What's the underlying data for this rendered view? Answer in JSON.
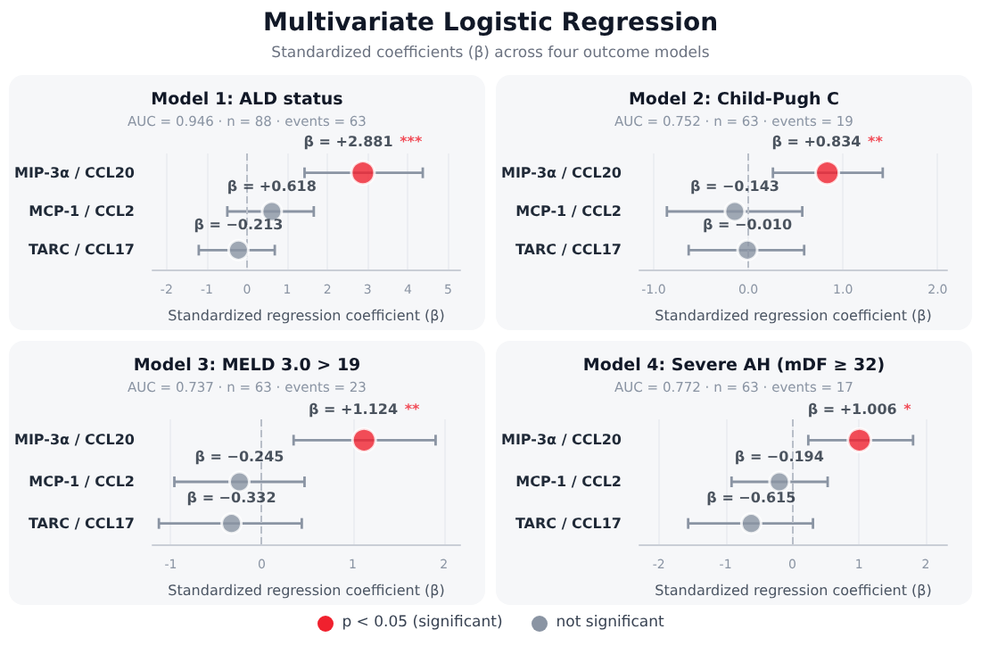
{
  "chart_data": [
    {
      "type": "scatter",
      "orientation": "horizontal",
      "title": "Model 1: ALD status",
      "subtitle": "AUC = 0.946 · n = 88 · events = 63",
      "xlabel": "Standardized regression coefficient (β)",
      "annotations": [
        "Multivariate Logistic Regression",
        "Standardized coefficients (β) across four outcome models"
      ],
      "categories": [
        "MIP-3α / CCL20",
        "MCP-1 / CCL2",
        "TARC / CCL17"
      ],
      "xlim": [
        -2.35,
        5.3
      ],
      "xticks": [
        -2,
        -1,
        0,
        1,
        2,
        3,
        4,
        5
      ],
      "grid": "x",
      "marker": "circle",
      "legend": "bottom",
      "ref_lines": [
        {
          "axis": "x",
          "value": 0,
          "line_style": "dashed",
          "color": "#b8bec8"
        }
      ],
      "series": [
        {
          "name": "p < 0.05 (significant)",
          "color": "#f0212e",
          "values": [
            2.881,
            null,
            null
          ],
          "errors": [
            [
              1.43,
              4.37
            ],
            null,
            null
          ],
          "value_labels": [
            "β = +2.881 ***",
            null,
            null
          ]
        },
        {
          "name": "not significant",
          "color": "#8a94a3",
          "values": [
            null,
            0.618,
            -0.213
          ],
          "errors": [
            null,
            [
              -0.49,
              1.66
            ],
            [
              -1.2,
              0.69
            ]
          ],
          "value_labels": [
            null,
            "β = +0.618",
            "β = −0.213"
          ]
        }
      ]
    },
    {
      "type": "scatter",
      "orientation": "horizontal",
      "title": "Model 2: Child-Pugh C",
      "subtitle": "AUC = 0.752 · n = 63 · events = 19",
      "xlabel": "Standardized regression coefficient (β)",
      "categories": [
        "MIP-3α / CCL20",
        "MCP-1 / CCL2",
        "TARC / CCL17"
      ],
      "xlim": [
        -1.15,
        2.1
      ],
      "xticks": [
        {
          "value": -1,
          "label": "-1.0"
        },
        {
          "value": 0,
          "label": "0.0"
        },
        {
          "value": 1,
          "label": "1.0"
        },
        {
          "value": 2,
          "label": "2.0"
        }
      ],
      "grid": "x",
      "marker": "circle",
      "ref_lines": [
        {
          "axis": "x",
          "value": 0,
          "line_style": "dashed",
          "color": "#b8bec8"
        }
      ],
      "series": [
        {
          "color": "#f0212e",
          "values": [
            0.834,
            null,
            null
          ],
          "errors": [
            [
              0.26,
              1.42
            ],
            null,
            null
          ],
          "value_labels": [
            "β = +0.834 **",
            null,
            null
          ]
        },
        {
          "color": "#8a94a3",
          "values": [
            null,
            -0.143,
            -0.01
          ],
          "errors": [
            null,
            [
              -0.86,
              0.57
            ],
            [
              -0.63,
              0.59
            ]
          ],
          "value_labels": [
            null,
            "β = −0.143",
            "β = −0.010"
          ]
        }
      ]
    },
    {
      "type": "scatter",
      "orientation": "horizontal",
      "title": "Model 3: MELD 3.0 > 19",
      "subtitle": "AUC = 0.737 · n = 63 · events = 23",
      "xlabel": "Standardized regression coefficient (β)",
      "categories": [
        "MIP-3α / CCL20",
        "MCP-1 / CCL2",
        "TARC / CCL17"
      ],
      "xlim": [
        -1.2,
        2.18
      ],
      "xticks": [
        -1,
        0,
        1,
        2
      ],
      "grid": "x",
      "marker": "circle",
      "ref_lines": [
        {
          "axis": "x",
          "value": 0,
          "line_style": "dashed",
          "color": "#b8bec8"
        }
      ],
      "series": [
        {
          "color": "#f0212e",
          "values": [
            1.124,
            null,
            null
          ],
          "errors": [
            [
              0.35,
              1.91
            ],
            null,
            null
          ],
          "value_labels": [
            "β = +1.124 **",
            null,
            null
          ]
        },
        {
          "color": "#8a94a3",
          "values": [
            null,
            -0.245,
            -0.332
          ],
          "errors": [
            null,
            [
              -0.96,
              0.47
            ],
            [
              -1.13,
              0.44
            ]
          ],
          "value_labels": [
            null,
            "β = −0.245",
            "β = −0.332"
          ]
        }
      ]
    },
    {
      "type": "scatter",
      "orientation": "horizontal",
      "title": "Model 4: Severe AH (mDF ≥ 32)",
      "subtitle": "AUC = 0.772 · n = 63 · events = 17",
      "xlabel": "Standardized regression coefficient (β)",
      "categories": [
        "MIP-3α / CCL20",
        "MCP-1 / CCL2",
        "TARC / CCL17"
      ],
      "xlim": [
        -2.29,
        2.32
      ],
      "xticks": [
        -2,
        -1,
        0,
        1,
        2
      ],
      "grid": "x",
      "marker": "circle",
      "ref_lines": [
        {
          "axis": "x",
          "value": 0,
          "line_style": "dashed",
          "color": "#b8bec8"
        }
      ],
      "series": [
        {
          "color": "#f0212e",
          "values": [
            1.006,
            null,
            null
          ],
          "errors": [
            [
              0.24,
              1.81
            ],
            null,
            null
          ],
          "value_labels": [
            "β = +1.006 *",
            null,
            null
          ]
        },
        {
          "color": "#8a94a3",
          "values": [
            null,
            -0.194,
            -0.615
          ],
          "errors": [
            null,
            [
              -0.91,
              0.53
            ],
            [
              -1.56,
              0.31
            ]
          ],
          "value_labels": [
            null,
            "β = −0.194",
            "β = −0.615"
          ]
        }
      ]
    }
  ]
}
